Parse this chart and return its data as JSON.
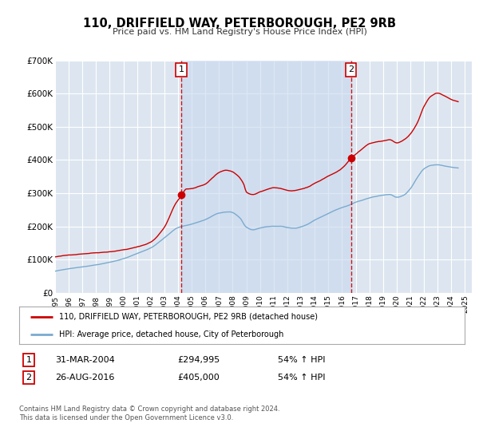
{
  "title": "110, DRIFFIELD WAY, PETERBOROUGH, PE2 9RB",
  "subtitle": "Price paid vs. HM Land Registry's House Price Index (HPI)",
  "background_color": "#ffffff",
  "plot_bg_color": "#dde6f0",
  "grid_color": "#ffffff",
  "shade_color": "#ccdaee",
  "red_line_color": "#cc0000",
  "blue_line_color": "#7aaad0",
  "ylim": [
    0,
    700000
  ],
  "yticks": [
    0,
    100000,
    200000,
    300000,
    400000,
    500000,
    600000,
    700000
  ],
  "ytick_labels": [
    "£0",
    "£100K",
    "£200K",
    "£300K",
    "£400K",
    "£500K",
    "£600K",
    "£700K"
  ],
  "xlim_start": 1995.0,
  "xlim_end": 2025.5,
  "xticks": [
    1995,
    1996,
    1997,
    1998,
    1999,
    2000,
    2001,
    2002,
    2003,
    2004,
    2005,
    2006,
    2007,
    2008,
    2009,
    2010,
    2011,
    2012,
    2013,
    2014,
    2015,
    2016,
    2017,
    2018,
    2019,
    2020,
    2021,
    2022,
    2023,
    2024,
    2025
  ],
  "sale1_x": 2004.25,
  "sale1_y": 294995,
  "sale2_x": 2016.65,
  "sale2_y": 405000,
  "sale1_label": "1",
  "sale2_label": "2",
  "sale1_date": "31-MAR-2004",
  "sale1_price": "£294,995",
  "sale1_hpi": "54% ↑ HPI",
  "sale2_date": "26-AUG-2016",
  "sale2_price": "£405,000",
  "sale2_hpi": "54% ↑ HPI",
  "legend_label1": "110, DRIFFIELD WAY, PETERBOROUGH, PE2 9RB (detached house)",
  "legend_label2": "HPI: Average price, detached house, City of Peterborough",
  "footer": "Contains HM Land Registry data © Crown copyright and database right 2024.\nThis data is licensed under the Open Government Licence v3.0."
}
